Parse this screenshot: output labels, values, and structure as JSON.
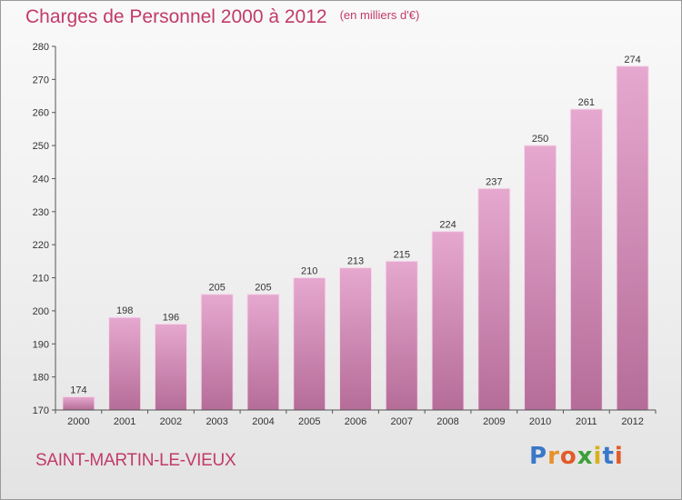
{
  "header": {
    "title": "Charges de Personnel 2000 à 2012",
    "unit": "(en milliers d'€)"
  },
  "footer": {
    "commune": "SAINT-MARTIN-LE-VIEUX",
    "logo_letters": [
      "P",
      "r",
      "o",
      "x",
      "i",
      "t",
      "i"
    ],
    "logo_colors": [
      "#3a78c8",
      "#e8912a",
      "#e35a2a",
      "#3aa03a",
      "#d8b01c",
      "#3a78c8",
      "#e35a2a"
    ]
  },
  "chart_data": {
    "type": "bar",
    "title": "Charges de Personnel 2000 à 2012",
    "subtitle": "(en milliers d'€)",
    "xlabel": "",
    "ylabel": "",
    "categories": [
      "2000",
      "2001",
      "2002",
      "2003",
      "2004",
      "2005",
      "2006",
      "2007",
      "2008",
      "2009",
      "2010",
      "2011",
      "2012"
    ],
    "values": [
      174,
      198,
      196,
      205,
      205,
      210,
      213,
      215,
      224,
      237,
      250,
      261,
      274
    ],
    "ylim": [
      170,
      280
    ],
    "yticks": [
      170,
      180,
      190,
      200,
      210,
      220,
      230,
      240,
      250,
      260,
      270,
      280
    ],
    "grid": false,
    "bar_color_top": "#e6a8cf",
    "bar_color_bottom": "#b56d98"
  }
}
